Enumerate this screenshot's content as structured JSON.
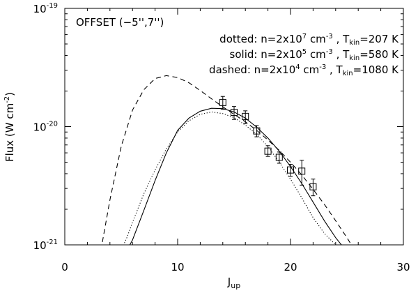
{
  "chart_data": {
    "type": "line",
    "xlabel": "J",
    "xlabel_sub": "up",
    "ylabel": "Flux (W cm",
    "ylabel_sup": "-2",
    "ylabel_close": ")",
    "xlim": [
      0,
      30
    ],
    "ylim": [
      1e-21,
      1e-19
    ],
    "yscale": "log",
    "x_ticks": [
      0,
      10,
      20,
      30
    ],
    "x_tick_labels": [
      "0",
      "10",
      "20",
      "30"
    ],
    "y_ticks": [
      {
        "value": 1e-21,
        "base": "10",
        "exp": "-21"
      },
      {
        "value": 1e-20,
        "base": "10",
        "exp": "-20"
      },
      {
        "value": 1e-19,
        "base": "10",
        "exp": "-19"
      }
    ],
    "annotation": {
      "offset": "OFFSET (−5'',7'')",
      "models": [
        {
          "label": "dotted: n=2x10",
          "n_exp": "7",
          "units": " cm",
          "units_exp": "-3",
          "sep": " , T",
          "tsub": "kin",
          "tval": "=207 K"
        },
        {
          "label": "solid: n=2x10",
          "n_exp": "5",
          "units": " cm",
          "units_exp": "-3",
          "sep": " , T",
          "tsub": "kin",
          "tval": "=580 K"
        },
        {
          "label": "dashed: n=2x10",
          "n_exp": "4",
          "units": " cm",
          "units_exp": "-3",
          "sep": " , T",
          "tsub": "kin",
          "tval": "=1080 K"
        }
      ]
    },
    "observations": {
      "x": [
        14,
        15,
        16,
        17,
        18,
        19,
        20,
        21,
        22
      ],
      "y": [
        1.6e-20,
        1.32e-20,
        1.22e-20,
        9.2e-21,
        6.2e-21,
        5.5e-21,
        4.3e-21,
        4.2e-21,
        3.1e-21
      ],
      "err_low": [
        1.4e-20,
        1.15e-20,
        1.06e-20,
        8.2e-21,
        5.6e-21,
        4.9e-21,
        3.8e-21,
        3.2e-21,
        2.6e-21
      ],
      "err_high": [
        1.8e-20,
        1.48e-20,
        1.36e-20,
        1.02e-20,
        6.9e-21,
        6.1e-21,
        4.8e-21,
        5.2e-21,
        3.6e-21
      ]
    },
    "series": [
      {
        "style": "dotted",
        "x": [
          5.0,
          5.5,
          6,
          7,
          8,
          9,
          10,
          11,
          12,
          13,
          14,
          15,
          16,
          17,
          18,
          19,
          20,
          21,
          22,
          23,
          24,
          24.3
        ],
        "y": [
          9e-22,
          1.15e-21,
          1.55e-21,
          2.7e-21,
          4.3e-21,
          6.5e-21,
          9e-21,
          1.12e-20,
          1.27e-20,
          1.33e-20,
          1.29e-20,
          1.19e-20,
          1.03e-20,
          8.6e-21,
          6.8e-21,
          5e-21,
          3.6e-21,
          2.5e-21,
          1.7e-21,
          1.25e-21,
          1e-21,
          9.2e-22
        ]
      },
      {
        "style": "solid",
        "x": [
          5.5,
          6,
          7,
          8,
          9,
          10,
          11,
          12,
          13,
          14,
          15,
          16,
          17,
          18,
          19,
          20,
          21,
          22,
          23,
          24,
          24.7
        ],
        "y": [
          9e-22,
          1.1e-21,
          1.95e-21,
          3.5e-21,
          6e-21,
          9.3e-21,
          1.18e-20,
          1.35e-20,
          1.43e-20,
          1.42e-20,
          1.33e-20,
          1.18e-20,
          9.9e-21,
          8e-21,
          6.2e-21,
          4.6e-21,
          3.3e-21,
          2.3e-21,
          1.6e-21,
          1.15e-21,
          9.5e-22
        ]
      },
      {
        "style": "dashed",
        "x": [
          3.2,
          3.5,
          4,
          5,
          6,
          7,
          8,
          9,
          10,
          11,
          12,
          13,
          14,
          15,
          16,
          17,
          18,
          19,
          20,
          21,
          22,
          23,
          24,
          25,
          25.6
        ],
        "y": [
          9e-22,
          1.3e-21,
          2.4e-21,
          6.8e-21,
          1.38e-20,
          2.05e-20,
          2.55e-20,
          2.7e-20,
          2.6e-20,
          2.35e-20,
          2.02e-20,
          1.72e-20,
          1.47e-20,
          1.27e-20,
          1.1e-20,
          9.3e-21,
          7.7e-21,
          6.3e-21,
          5e-21,
          3.9e-21,
          2.95e-21,
          2.2e-21,
          1.6e-21,
          1.15e-21,
          9.3e-22
        ]
      }
    ]
  }
}
